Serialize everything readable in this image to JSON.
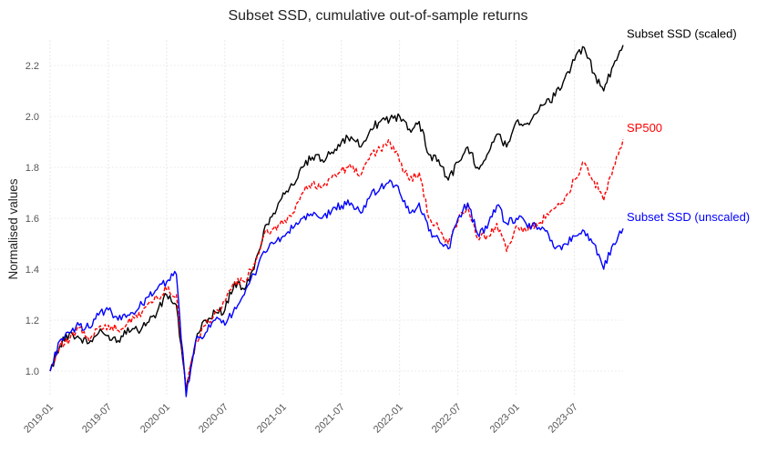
{
  "chart_data": {
    "type": "line",
    "title": "Subset SSD, cumulative out-of-sample returns",
    "xlabel": "",
    "ylabel": "Normalised values",
    "xlim": [
      "2019-01",
      "2023-12"
    ],
    "ylim": [
      0.9,
      2.3
    ],
    "y_ticks": [
      "1.0",
      "1.2",
      "1.4",
      "1.6",
      "1.8",
      "2.0",
      "2.2"
    ],
    "x_ticks": [
      "2019-01",
      "2019-07",
      "2020-01",
      "2020-07",
      "2021-01",
      "2021-07",
      "2022-01",
      "2022-07",
      "2023-01",
      "2023-07"
    ],
    "grid": true,
    "x": [
      "2019-01",
      "2019-02",
      "2019-03",
      "2019-04",
      "2019-05",
      "2019-06",
      "2019-07",
      "2019-08",
      "2019-09",
      "2019-10",
      "2019-11",
      "2019-12",
      "2020-01",
      "2020-02",
      "2020-03",
      "2020-04",
      "2020-05",
      "2020-06",
      "2020-07",
      "2020-08",
      "2020-09",
      "2020-10",
      "2020-11",
      "2020-12",
      "2021-01",
      "2021-02",
      "2021-03",
      "2021-04",
      "2021-05",
      "2021-06",
      "2021-07",
      "2021-08",
      "2021-09",
      "2021-10",
      "2021-11",
      "2021-12",
      "2022-01",
      "2022-02",
      "2022-03",
      "2022-04",
      "2022-05",
      "2022-06",
      "2022-07",
      "2022-08",
      "2022-09",
      "2022-10",
      "2022-11",
      "2022-12",
      "2023-01",
      "2023-02",
      "2023-03",
      "2023-04",
      "2023-05",
      "2023-06",
      "2023-07",
      "2023-08",
      "2023-09",
      "2023-10",
      "2023-11",
      "2023-12"
    ],
    "series": [
      {
        "name": "Subset SSD (scaled)",
        "color": "#000000",
        "dash": "solid",
        "values": [
          1.0,
          1.1,
          1.15,
          1.13,
          1.11,
          1.15,
          1.14,
          1.12,
          1.17,
          1.16,
          1.19,
          1.23,
          1.3,
          1.26,
          0.92,
          1.12,
          1.2,
          1.23,
          1.24,
          1.35,
          1.32,
          1.4,
          1.55,
          1.62,
          1.7,
          1.73,
          1.8,
          1.84,
          1.83,
          1.86,
          1.9,
          1.92,
          1.88,
          1.95,
          1.98,
          1.99,
          2.0,
          1.95,
          1.98,
          1.85,
          1.83,
          1.75,
          1.82,
          1.88,
          1.8,
          1.85,
          1.93,
          1.88,
          1.98,
          1.97,
          2.01,
          2.05,
          2.08,
          2.15,
          2.22,
          2.27,
          2.17,
          2.1,
          2.2,
          2.28
        ]
      },
      {
        "name": "SP500",
        "color": "#ff0000",
        "dash": "dashed",
        "values": [
          1.0,
          1.1,
          1.12,
          1.17,
          1.12,
          1.17,
          1.18,
          1.16,
          1.19,
          1.21,
          1.26,
          1.29,
          1.32,
          1.3,
          0.93,
          1.12,
          1.18,
          1.23,
          1.27,
          1.35,
          1.35,
          1.42,
          1.53,
          1.56,
          1.58,
          1.62,
          1.7,
          1.74,
          1.72,
          1.76,
          1.79,
          1.8,
          1.77,
          1.85,
          1.87,
          1.9,
          1.82,
          1.75,
          1.78,
          1.6,
          1.56,
          1.5,
          1.59,
          1.65,
          1.52,
          1.53,
          1.58,
          1.47,
          1.57,
          1.55,
          1.58,
          1.6,
          1.64,
          1.68,
          1.75,
          1.82,
          1.75,
          1.67,
          1.8,
          1.91
        ]
      },
      {
        "name": "Subset SSD (unscaled)",
        "color": "#0000ff",
        "dash": "solid",
        "values": [
          1.0,
          1.12,
          1.15,
          1.18,
          1.17,
          1.22,
          1.24,
          1.2,
          1.22,
          1.24,
          1.29,
          1.32,
          1.35,
          1.38,
          0.9,
          1.12,
          1.15,
          1.2,
          1.18,
          1.25,
          1.3,
          1.38,
          1.47,
          1.5,
          1.53,
          1.56,
          1.6,
          1.61,
          1.6,
          1.63,
          1.65,
          1.66,
          1.62,
          1.69,
          1.72,
          1.75,
          1.7,
          1.62,
          1.66,
          1.55,
          1.52,
          1.48,
          1.6,
          1.66,
          1.54,
          1.56,
          1.65,
          1.58,
          1.6,
          1.58,
          1.57,
          1.55,
          1.48,
          1.5,
          1.53,
          1.55,
          1.5,
          1.4,
          1.5,
          1.56
        ]
      }
    ]
  }
}
